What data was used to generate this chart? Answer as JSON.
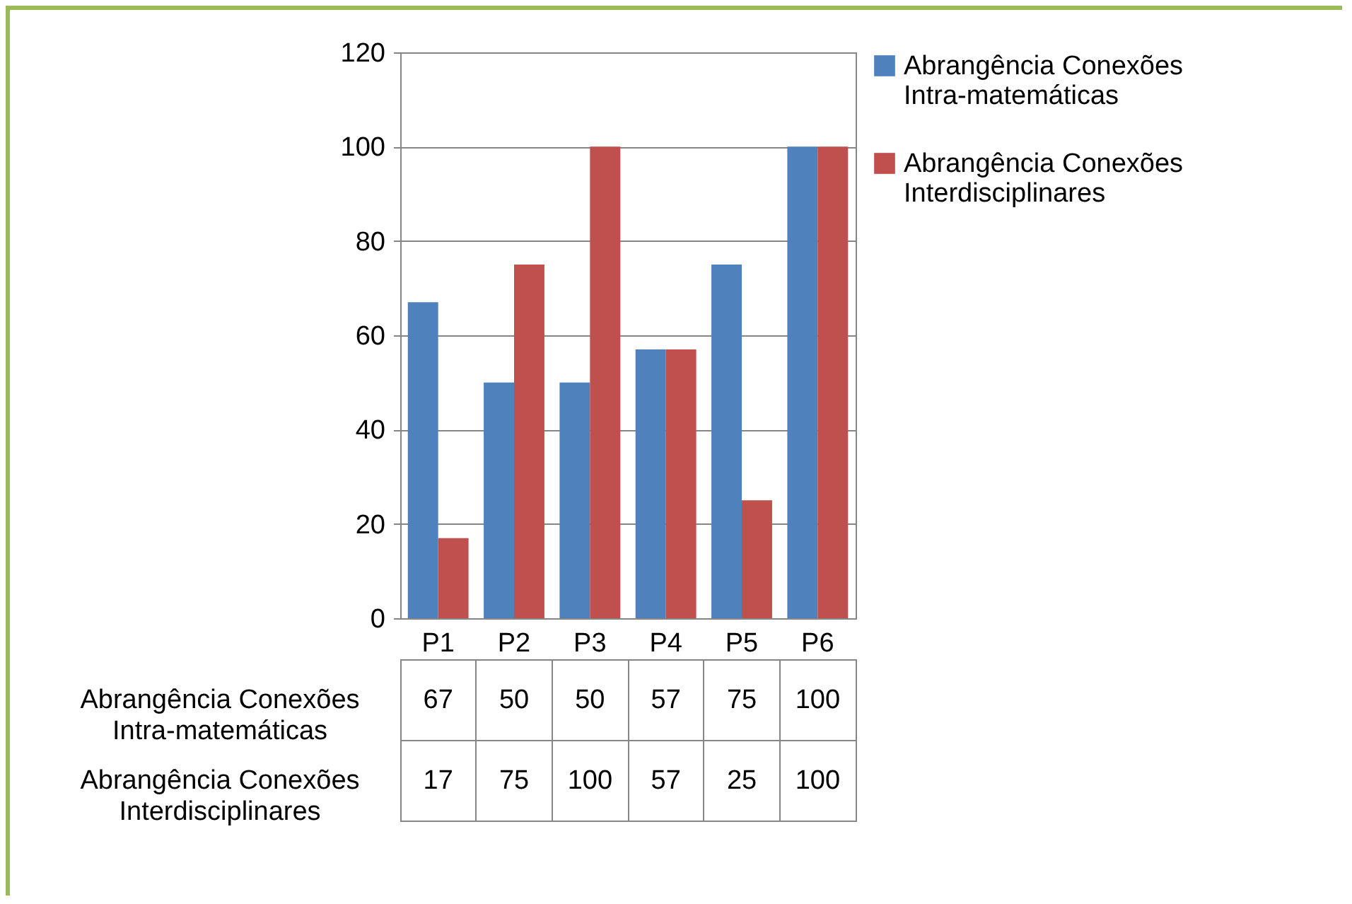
{
  "chart_data": {
    "type": "bar",
    "categories": [
      "P1",
      "P2",
      "P3",
      "P4",
      "P5",
      "P6"
    ],
    "series": [
      {
        "name": "Abrangência Conexões Intra-matemáticas",
        "color": "#4f81bd",
        "values": [
          67,
          50,
          50,
          57,
          75,
          100
        ]
      },
      {
        "name": "Abrangência Conexões Interdisciplinares",
        "color": "#c0504d",
        "values": [
          17,
          75,
          100,
          57,
          25,
          100
        ]
      }
    ],
    "ylim": [
      0,
      120
    ],
    "yticks": [
      0,
      20,
      40,
      60,
      80,
      100,
      120
    ],
    "grid": "y",
    "legend": "right",
    "data_labels": true
  }
}
